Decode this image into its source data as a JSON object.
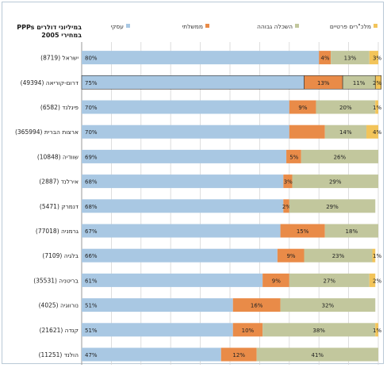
{
  "chart_data": {
    "type": "bar",
    "stacked": true,
    "orientation": "horizontal",
    "title": "PPPs במיליוני דולרים במחירי 2005",
    "categories": [
      "ישראל (8719)",
      "דרום-קוריאה (49394)",
      "פינלנד (6582)",
      "ארצות הברית (365994)",
      "שוודיה (10848)",
      "אירלנד (2887)",
      "דנמרק (5471)",
      "גרמניה (77018)",
      "בלגיה (7109)",
      "בריטניה (35531)",
      "נורווגיה (4025)",
      "קנדה (21621)",
      "הולנד (11251)"
    ],
    "series": [
      {
        "name": "עסקי",
        "color": "#a9c8e3",
        "values": [
          80,
          75,
          70,
          70,
          69,
          68,
          68,
          67,
          66,
          61,
          51,
          51,
          47
        ],
        "labels": [
          "80%",
          "75%",
          "70%",
          "70%",
          "69%",
          "68%",
          "68%",
          "67%",
          "66%",
          "61%",
          "51%",
          "51%",
          "47%"
        ]
      },
      {
        "name": "ממשלתי",
        "color": "#e98b48",
        "values": [
          4,
          13,
          9,
          12,
          5,
          3,
          2,
          15,
          9,
          9,
          16,
          10,
          12
        ],
        "labels": [
          "4%",
          "13%",
          "9%",
          "",
          "5%",
          "3%",
          "2%",
          "15%",
          "9%",
          "9%",
          "16%",
          "10%",
          "12%"
        ]
      },
      {
        "name": "השכלה גבוהה",
        "color": "#c2c79d",
        "values": [
          13,
          11,
          20,
          14,
          26,
          29,
          29,
          18,
          23,
          27,
          32,
          38,
          41
        ],
        "labels": [
          "13%",
          "11%",
          "20%",
          "14%",
          "26%",
          "29%",
          "29%",
          "18%",
          "23%",
          "27%",
          "32%",
          "38%",
          "41%"
        ]
      },
      {
        "name": "מלכ\"רים פרטיים",
        "color": "#f2c45a",
        "values": [
          3,
          2,
          1,
          4,
          0,
          0,
          0,
          0,
          1,
          2,
          0,
          1,
          0
        ],
        "labels": [
          "3%",
          "2%",
          "1%",
          "4%",
          "",
          "",
          "",
          "",
          "1%",
          "2%",
          "",
          "1%",
          ""
        ]
      }
    ],
    "xlim": [
      0,
      100
    ],
    "xticks": [
      "0%",
      "10%",
      "20%",
      "30%",
      "40%",
      "50%",
      "60%",
      "70%",
      "80%",
      "90%",
      "100%"
    ],
    "grid": true,
    "legend": "top"
  }
}
